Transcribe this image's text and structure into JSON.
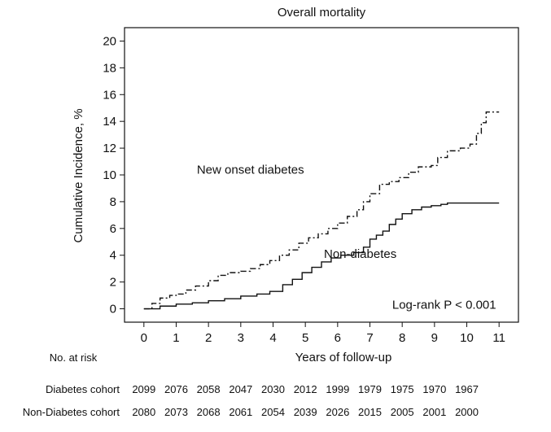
{
  "chart_data": {
    "type": "line",
    "title": "Overall mortality",
    "xlabel": "Years of follow-up",
    "ylabel": "Cumulative Incidence, %",
    "xlim": [
      -0.6,
      11.6
    ],
    "ylim": [
      -1,
      21
    ],
    "xticks": [
      0,
      1,
      2,
      3,
      4,
      5,
      6,
      7,
      8,
      9,
      10,
      11
    ],
    "yticks": [
      0,
      2,
      4,
      6,
      8,
      10,
      12,
      14,
      16,
      18,
      20
    ],
    "grid": false,
    "series": [
      {
        "name": "New onset diabetes",
        "style": "dash-dot",
        "x": [
          0,
          0.25,
          0.5,
          0.8,
          1.0,
          1.3,
          1.6,
          2.0,
          2.3,
          2.6,
          3.0,
          3.3,
          3.6,
          3.9,
          4.2,
          4.5,
          4.8,
          5.1,
          5.4,
          5.7,
          6.0,
          6.3,
          6.6,
          6.8,
          7.0,
          7.3,
          7.6,
          7.9,
          8.2,
          8.5,
          8.9,
          9.1,
          9.4,
          9.8,
          10.1,
          10.3,
          10.45,
          10.6,
          11.0
        ],
        "y": [
          0,
          0.4,
          0.8,
          1.0,
          1.1,
          1.4,
          1.7,
          2.1,
          2.5,
          2.7,
          2.8,
          3.0,
          3.3,
          3.6,
          4.0,
          4.4,
          4.9,
          5.3,
          5.6,
          6.0,
          6.4,
          6.9,
          7.4,
          8.0,
          8.6,
          9.3,
          9.5,
          9.8,
          10.2,
          10.6,
          10.7,
          11.3,
          11.8,
          12.0,
          12.3,
          13.1,
          13.9,
          14.7,
          14.7
        ]
      },
      {
        "name": "Non-diabetes",
        "style": "solid",
        "x": [
          0,
          0.5,
          1.0,
          1.5,
          2.0,
          2.5,
          3.0,
          3.5,
          3.9,
          4.3,
          4.6,
          4.9,
          5.2,
          5.5,
          5.8,
          6.1,
          6.5,
          6.8,
          7.0,
          7.2,
          7.4,
          7.6,
          7.8,
          8.0,
          8.3,
          8.6,
          8.9,
          9.2,
          9.4,
          10.0,
          10.5,
          11.0
        ],
        "y": [
          0,
          0.2,
          0.35,
          0.45,
          0.6,
          0.75,
          0.95,
          1.1,
          1.3,
          1.8,
          2.2,
          2.7,
          3.1,
          3.5,
          3.8,
          4.0,
          4.2,
          4.6,
          5.2,
          5.5,
          5.8,
          6.3,
          6.7,
          7.1,
          7.4,
          7.6,
          7.7,
          7.8,
          7.9,
          7.9,
          7.9,
          7.9
        ]
      }
    ],
    "annotations": [
      {
        "text": "New onset diabetes",
        "x": 3.3,
        "y": 10.1
      },
      {
        "text": "Non-diabetes",
        "x": 6.7,
        "y": 3.8
      },
      {
        "text": "Log-rank P < 0.001",
        "x": 9.3,
        "y": 0
      }
    ],
    "risk_table": {
      "header": "No. at risk",
      "rows": [
        {
          "label": "Diabetes cohort",
          "values": [
            "2099",
            "2076",
            "2058",
            "2047",
            "2030",
            "2012",
            "1999",
            "1979",
            "1975",
            "1970",
            "1967"
          ]
        },
        {
          "label": "Non-Diabetes cohort",
          "values": [
            "2080",
            "2073",
            "2068",
            "2061",
            "2054",
            "2039",
            "2026",
            "2015",
            "2005",
            "2001",
            "2000"
          ]
        }
      ]
    }
  }
}
